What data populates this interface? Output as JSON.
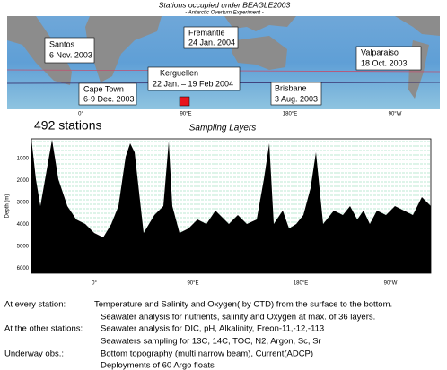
{
  "map": {
    "title": "Stations occupied under BEAGLE2003",
    "subtitle": "- Antarctic Overturn Experiment -",
    "ports": [
      {
        "name": "Santos",
        "date": "6 Nov. 2003"
      },
      {
        "name": "Fremantle",
        "date": "24 Jan. 2004"
      },
      {
        "name": "Valparaiso",
        "date": "18 Oct. 2003"
      },
      {
        "name": "Kerguellen",
        "date": "22 Jan. – 19 Feb 2004"
      },
      {
        "name": "Cape Town",
        "date": "6-9 Dec. 2003"
      },
      {
        "name": "Brisbane",
        "date": "3 Aug. 2003"
      }
    ],
    "lon_labels": [
      "0°",
      "90°E",
      "180°E",
      "90°W"
    ]
  },
  "section": {
    "stations": "492 stations",
    "title": "Sampling Layers",
    "y_label": "Depth (m)",
    "depth_labels": [
      "1000",
      "2000",
      "3000",
      "4000",
      "5000",
      "6000"
    ],
    "lon_labels": [
      "0°",
      "90°E",
      "180°E",
      "90°W"
    ]
  },
  "notes": [
    {
      "label": "At every station:",
      "lines": [
        "Temperature and Salinity and Oxygen( by CTD) from the surface to the bottom.",
        "Seawater analysis for nutrients, salinity and Oxygen at max. of 36 layers."
      ]
    },
    {
      "label": "At the other stations:",
      "lines": [
        "Seawater analysis for DIC, pH, Alkalinity, Freon-11,-12,-113",
        "Seawaters sampling for 13C, 14C, TOC, N2, Argon, Sc, Sr"
      ]
    },
    {
      "label": "Underway obs.:",
      "lines": [
        "Bottom topography (multi narrow beam), Current(ADCP)",
        "Deployments of 60 Argo floats"
      ]
    }
  ]
}
